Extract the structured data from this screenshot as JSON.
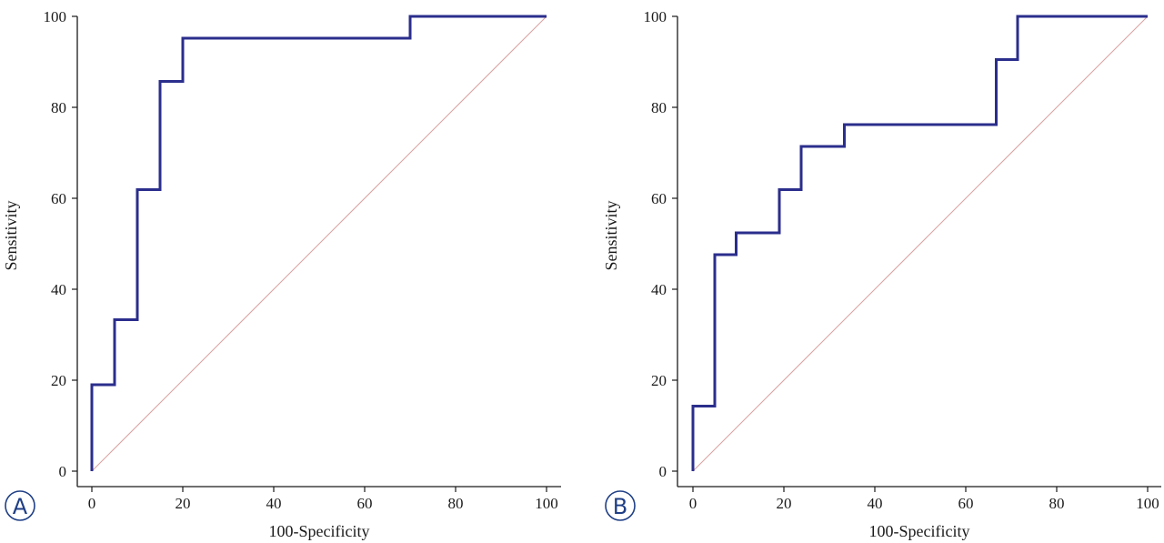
{
  "chart_data": [
    {
      "type": "line",
      "panel_label": "A",
      "title": "",
      "xlabel": "100-Specificity",
      "ylabel": "Sensitivity",
      "xlim": [
        0,
        100
      ],
      "ylim": [
        0,
        100
      ],
      "x_ticks": [
        0,
        20,
        40,
        60,
        80,
        100
      ],
      "y_ticks": [
        0,
        20,
        40,
        60,
        80,
        100
      ],
      "grid": false,
      "series": [
        {
          "name": "ROC curve",
          "color": "#2b2e8c",
          "x": [
            0,
            0,
            5,
            5,
            10,
            10,
            15,
            15,
            20,
            20,
            70,
            70,
            100
          ],
          "y": [
            0,
            19,
            19,
            33.3,
            33.3,
            61.9,
            61.9,
            85.7,
            85.7,
            95.2,
            95.2,
            100,
            100
          ]
        },
        {
          "name": "Reference line",
          "color": "#d9a0a0",
          "x": [
            0,
            100
          ],
          "y": [
            0,
            100
          ]
        }
      ]
    },
    {
      "type": "line",
      "panel_label": "B",
      "title": "",
      "xlabel": "100-Specificity",
      "ylabel": "Sensitivity",
      "xlim": [
        0,
        100
      ],
      "ylim": [
        0,
        100
      ],
      "x_ticks": [
        0,
        20,
        40,
        60,
        80,
        100
      ],
      "y_ticks": [
        0,
        20,
        40,
        60,
        80,
        100
      ],
      "grid": false,
      "series": [
        {
          "name": "ROC curve",
          "color": "#2b2e8c",
          "x": [
            0,
            0,
            4.8,
            4.8,
            9.5,
            9.5,
            19,
            19,
            23.8,
            23.8,
            33.3,
            33.3,
            66.7,
            66.7,
            71.4,
            71.4,
            100
          ],
          "y": [
            0,
            14.3,
            14.3,
            47.6,
            47.6,
            52.4,
            52.4,
            61.9,
            61.9,
            71.4,
            71.4,
            76.2,
            76.2,
            90.5,
            90.5,
            100,
            100
          ]
        },
        {
          "name": "Reference line",
          "color": "#d9a0a0",
          "x": [
            0,
            100
          ],
          "y": [
            0,
            100
          ]
        }
      ]
    }
  ]
}
